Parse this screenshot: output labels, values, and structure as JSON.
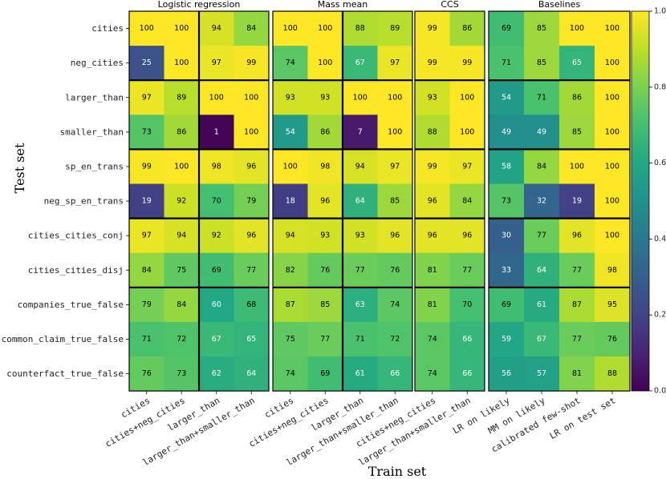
{
  "chart_data": {
    "type": "heatmap",
    "xlabel": "Train set",
    "ylabel": "Test set",
    "rows": [
      "cities",
      "neg_cities",
      "larger_than",
      "smaller_than",
      "sp_en_trans",
      "neg_sp_en_trans",
      "cities_cities_conj",
      "cities_cities_disj",
      "companies_true_false",
      "common_claim_true_false",
      "counterfact_true_false"
    ],
    "row_groups": [
      2,
      4,
      6,
      8
    ],
    "panels": [
      {
        "title": "Logistic regression",
        "columns": [
          "cities",
          "cities+neg_cities",
          "larger_than",
          "larger_than+smaller_than"
        ],
        "col_groups": [
          2
        ],
        "values": [
          [
            100,
            100,
            94,
            84
          ],
          [
            25,
            100,
            97,
            99
          ],
          [
            97,
            89,
            100,
            100
          ],
          [
            73,
            86,
            1,
            100
          ],
          [
            99,
            100,
            98,
            96
          ],
          [
            19,
            92,
            70,
            79
          ],
          [
            97,
            94,
            92,
            96
          ],
          [
            84,
            75,
            69,
            77
          ],
          [
            79,
            84,
            60,
            68
          ],
          [
            71,
            72,
            67,
            65
          ],
          [
            76,
            73,
            62,
            64
          ]
        ]
      },
      {
        "title": "Mass mean",
        "columns": [
          "cities",
          "cities+neg_cities",
          "larger_than",
          "larger_than+smaller_than"
        ],
        "col_groups": [
          2
        ],
        "values": [
          [
            100,
            100,
            88,
            89
          ],
          [
            74,
            100,
            67,
            97
          ],
          [
            93,
            93,
            100,
            100
          ],
          [
            54,
            86,
            7,
            100
          ],
          [
            100,
            98,
            94,
            97
          ],
          [
            18,
            96,
            64,
            85
          ],
          [
            94,
            93,
            93,
            96
          ],
          [
            82,
            76,
            77,
            76
          ],
          [
            87,
            85,
            63,
            74
          ],
          [
            75,
            77,
            71,
            72
          ],
          [
            74,
            69,
            61,
            66
          ]
        ]
      },
      {
        "title": "CCS",
        "columns": [
          "cities+neg_cities",
          "larger_than+smaller_than"
        ],
        "col_groups": [],
        "values": [
          [
            99,
            86
          ],
          [
            99,
            99
          ],
          [
            93,
            100
          ],
          [
            88,
            100
          ],
          [
            99,
            97
          ],
          [
            96,
            84
          ],
          [
            96,
            96
          ],
          [
            81,
            77
          ],
          [
            81,
            70
          ],
          [
            74,
            66
          ],
          [
            74,
            66
          ]
        ]
      },
      {
        "title": "Baselines",
        "columns": [
          "LR on likely",
          "MM on likely",
          "calibrated few-shot",
          "LR on test set"
        ],
        "col_groups": [],
        "values": [
          [
            69,
            85,
            100,
            100
          ],
          [
            71,
            85,
            65,
            100
          ],
          [
            54,
            71,
            86,
            100
          ],
          [
            49,
            49,
            85,
            100
          ],
          [
            58,
            84,
            100,
            100
          ],
          [
            73,
            32,
            19,
            100
          ],
          [
            30,
            77,
            96,
            100
          ],
          [
            33,
            64,
            77,
            98
          ],
          [
            69,
            61,
            87,
            95
          ],
          [
            59,
            67,
            77,
            76
          ],
          [
            56,
            57,
            81,
            88
          ]
        ]
      }
    ],
    "colorbar": {
      "colormap": "viridis",
      "vmin": 0.0,
      "vmax": 1.0,
      "ticks": [
        "0.0",
        "0.2",
        "0.4",
        "0.6",
        "0.8",
        "1.0"
      ]
    }
  }
}
